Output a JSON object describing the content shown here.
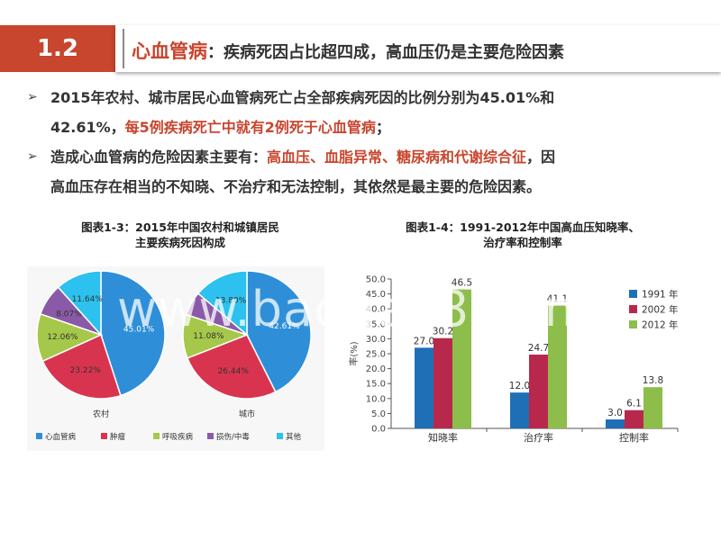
{
  "header": {
    "section_number": "1.2",
    "title_main": "心血管病",
    "title_sub": "：疾病死因占比超四成，高血压仍是主要危险因素"
  },
  "bullets": [
    {
      "arrow": "➢",
      "line1": "2015年农村、城市居民心血管病死亡占全部疾病死因的比例分别为45.01%和",
      "line2_plain": "42.61%，",
      "line2_highlight": "每5例疾病死亡中就有2例死于心血管病",
      "line2_end": "；"
    },
    {
      "arrow": "➢",
      "line1_plain": "造成心血管病的危险因素主要有：",
      "line1_highlight": "高血压、血脂异常、糖尿病和代谢综合征",
      "line1_end": "，因",
      "line2": "高血压存在相当的不知晓、不治疗和无法控制，其依然是最主要的危险因素。"
    }
  ],
  "watermark": "www.baogao8.com",
  "colors": {
    "accent": "#c8452e",
    "pie": [
      "#2e8fd8",
      "#d9344f",
      "#a6c84a",
      "#8a5aa8",
      "#2cc1ee"
    ],
    "bar": [
      "#1f6fb7",
      "#b8284c",
      "#8dbd4a"
    ]
  },
  "chart_data": [
    {
      "type": "pie",
      "title_line1": "图表1-3：2015年中国农村和城镇居民",
      "title_line2": "主要疾病死因构成",
      "pies": [
        {
          "name": "农村",
          "values": [
            45.01,
            23.22,
            12.06,
            8.07,
            11.64
          ],
          "labels": [
            "45.01%",
            "23.22%",
            "12.06%",
            "8.07%",
            "11.64%"
          ]
        },
        {
          "name": "城市",
          "values": [
            42.61,
            26.44,
            11.08,
            6.07,
            13.8
          ],
          "labels": [
            "42.61%",
            "26.44%",
            "11.08%",
            "",
            "13.80%"
          ]
        }
      ],
      "legend": [
        "心血管病",
        "肿瘤",
        "呼吸疾病",
        "损伤/中毒",
        "其他"
      ]
    },
    {
      "type": "bar",
      "title_line1": "图表1-4：1991-2012年中国高血压知晓率、",
      "title_line2": "治疗率和控制率",
      "categories": [
        "知晓率",
        "治疗率",
        "控制率"
      ],
      "series": [
        {
          "name": "1991 年",
          "values": [
            27.0,
            12.0,
            3.0
          ]
        },
        {
          "name": "2002 年",
          "values": [
            30.2,
            24.7,
            6.1
          ]
        },
        {
          "name": "2012 年",
          "values": [
            46.5,
            41.1,
            13.8
          ]
        }
      ],
      "value_labels": [
        [
          "27.0",
          "12.0",
          "3.0"
        ],
        [
          "30.2",
          "24.7",
          "6.1"
        ],
        [
          "46.5",
          "41.1",
          "13.8"
        ]
      ],
      "ylabel": "率(%)",
      "ylim": [
        0,
        50
      ],
      "yticks": [
        "0.0",
        "5.0",
        "10.0",
        "15.0",
        "20.0",
        "25.0",
        "30.0",
        "35.0",
        "40.0",
        "45.0",
        "50.0"
      ],
      "legend_position": "top-right"
    }
  ]
}
